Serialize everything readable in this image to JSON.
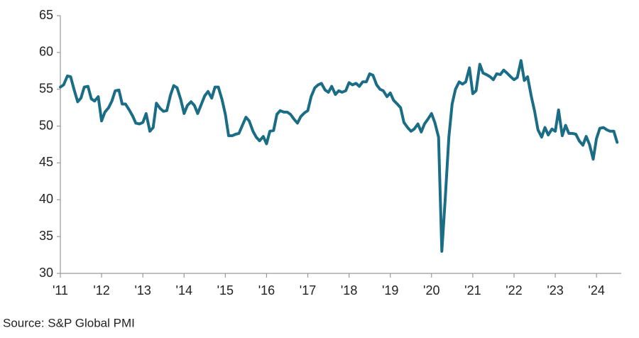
{
  "chart_data": {
    "type": "line",
    "source": "Source: S&P Global PMI",
    "color": "#1b6d85",
    "xlim": [
      2011,
      2024.6
    ],
    "xticks": [
      {
        "value": 2011,
        "label": "'11"
      },
      {
        "value": 2012,
        "label": "'12"
      },
      {
        "value": 2013,
        "label": "'13"
      },
      {
        "value": 2014,
        "label": "'14"
      },
      {
        "value": 2015,
        "label": "'15"
      },
      {
        "value": 2016,
        "label": "'16"
      },
      {
        "value": 2017,
        "label": "'17"
      },
      {
        "value": 2018,
        "label": "'18"
      },
      {
        "value": 2019,
        "label": "'19"
      },
      {
        "value": 2020,
        "label": "'20"
      },
      {
        "value": 2021,
        "label": "'21"
      },
      {
        "value": 2022,
        "label": "'22"
      },
      {
        "value": 2023,
        "label": "'23"
      },
      {
        "value": 2024,
        "label": "'24"
      }
    ],
    "ylim": [
      30,
      65
    ],
    "yticks": [
      30,
      35,
      40,
      45,
      50,
      55,
      60,
      65
    ],
    "x": [
      2011,
      2011.08,
      2011.17,
      2011.25,
      2011.33,
      2011.42,
      2011.5,
      2011.58,
      2011.67,
      2011.75,
      2011.83,
      2011.92,
      2012,
      2012.08,
      2012.17,
      2012.25,
      2012.33,
      2012.42,
      2012.5,
      2012.58,
      2012.67,
      2012.75,
      2012.83,
      2012.92,
      2013,
      2013.08,
      2013.17,
      2013.25,
      2013.33,
      2013.42,
      2013.5,
      2013.58,
      2013.67,
      2013.75,
      2013.83,
      2013.92,
      2014,
      2014.08,
      2014.17,
      2014.25,
      2014.33,
      2014.42,
      2014.5,
      2014.58,
      2014.67,
      2014.75,
      2014.83,
      2014.92,
      2015,
      2015.08,
      2015.17,
      2015.25,
      2015.33,
      2015.42,
      2015.5,
      2015.58,
      2015.67,
      2015.75,
      2015.83,
      2015.92,
      2016,
      2016.08,
      2016.17,
      2016.25,
      2016.33,
      2016.42,
      2016.5,
      2016.58,
      2016.67,
      2016.75,
      2016.83,
      2016.92,
      2017,
      2017.08,
      2017.17,
      2017.25,
      2017.33,
      2017.42,
      2017.5,
      2017.58,
      2017.67,
      2017.75,
      2017.83,
      2017.92,
      2018,
      2018.08,
      2018.17,
      2018.25,
      2018.33,
      2018.42,
      2018.5,
      2018.58,
      2018.67,
      2018.75,
      2018.83,
      2018.92,
      2019,
      2019.08,
      2019.17,
      2019.25,
      2019.33,
      2019.42,
      2019.5,
      2019.58,
      2019.67,
      2019.75,
      2019.83,
      2019.92,
      2020,
      2020.08,
      2020.17,
      2020.25,
      2020.33,
      2020.42,
      2020.5,
      2020.58,
      2020.67,
      2020.75,
      2020.83,
      2020.92,
      2021,
      2021.08,
      2021.17,
      2021.25,
      2021.33,
      2021.42,
      2021.5,
      2021.58,
      2021.67,
      2021.75,
      2021.83,
      2021.92,
      2022,
      2022.08,
      2022.17,
      2022.25,
      2022.33,
      2022.42,
      2022.5,
      2022.58,
      2022.67,
      2022.75,
      2022.83,
      2022.92,
      2023,
      2023.08,
      2023.17,
      2023.25,
      2023.33,
      2023.42,
      2023.5,
      2023.58,
      2023.67,
      2023.75,
      2023.83,
      2023.92,
      2024,
      2024.08,
      2024.17,
      2024.25,
      2024.33,
      2024.42,
      2024.5
    ],
    "values": [
      55.3,
      55.6,
      56.8,
      56.7,
      55.0,
      53.3,
      53.8,
      55.3,
      55.4,
      53.7,
      53.4,
      54.0,
      50.7,
      51.9,
      52.5,
      53.4,
      54.8,
      54.9,
      53.0,
      53.0,
      52.2,
      51.4,
      50.4,
      50.3,
      50.5,
      51.7,
      49.3,
      49.8,
      53.1,
      52.4,
      52.0,
      52.1,
      54.2,
      55.5,
      55.2,
      53.6,
      51.7,
      52.8,
      53.3,
      52.8,
      51.7,
      53.0,
      54.1,
      54.7,
      53.8,
      55.3,
      55.3,
      53.6,
      51.6,
      48.7,
      48.7,
      48.9,
      49.0,
      50.2,
      51.2,
      50.7,
      49.3,
      48.5,
      48.0,
      48.6,
      47.6,
      49.3,
      49.4,
      51.6,
      52.1,
      51.9,
      51.9,
      51.6,
      50.9,
      50.4,
      51.3,
      51.8,
      52.1,
      54.0,
      55.2,
      55.6,
      55.8,
      54.9,
      54.6,
      55.4,
      54.3,
      54.8,
      54.6,
      54.8,
      55.9,
      55.6,
      55.8,
      55.4,
      56.0,
      56.0,
      57.1,
      56.9,
      55.6,
      55.0,
      54.8,
      54.0,
      54.5,
      53.5,
      53.0,
      52.5,
      50.5,
      49.8,
      49.3,
      49.6,
      50.3,
      49.2,
      50.3,
      51.0,
      51.7,
      50.5,
      48.5,
      33.0,
      40.0,
      48.5,
      53.0,
      55.0,
      56.0,
      55.7,
      56.0,
      57.9,
      54.4,
      54.8,
      58.4,
      57.2,
      57.0,
      56.7,
      56.3,
      57.1,
      57.0,
      57.6,
      57.2,
      56.7,
      56.3,
      56.6,
      58.9,
      56.2,
      56.7,
      54.0,
      52.0,
      49.5,
      48.5,
      49.8,
      48.8,
      49.6,
      49.3,
      52.2,
      48.7,
      50.1,
      49.0,
      49.0,
      48.9,
      48.0,
      47.4,
      48.6,
      47.5,
      45.5,
      48.3,
      49.7,
      49.8,
      49.5,
      49.3,
      49.3,
      47.8
    ]
  }
}
